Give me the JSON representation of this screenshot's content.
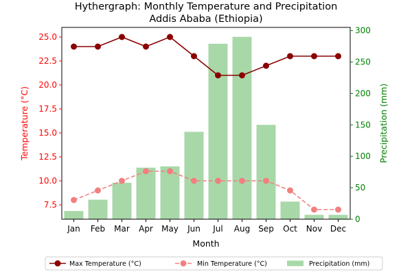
{
  "chart_data": {
    "type": "bar+line",
    "title": "Hythergraph: Monthly Temperature and Precipitation",
    "subtitle": "Addis Ababa (Ethiopia)",
    "xlabel": "Month",
    "ylabel_left": "Temperature (°C)",
    "ylabel_right": "Precipitation (mm)",
    "categories": [
      "Jan",
      "Feb",
      "Mar",
      "Apr",
      "May",
      "Jun",
      "Jul",
      "Aug",
      "Sep",
      "Oct",
      "Nov",
      "Dec"
    ],
    "ylim_left": [
      6.0,
      26.0
    ],
    "yticks_left": [
      "7.5",
      "10.0",
      "12.5",
      "15.0",
      "17.5",
      "20.0",
      "22.5",
      "25.0"
    ],
    "ylim_right": [
      0,
      305
    ],
    "yticks_right": [
      "0",
      "50",
      "100",
      "150",
      "200",
      "250",
      "300"
    ],
    "series": [
      {
        "name": "Max Temperature (°C)",
        "kind": "line",
        "axis": "left",
        "color": "#8b0000",
        "values": [
          24,
          24,
          25,
          24,
          25,
          23,
          21,
          21,
          22,
          23,
          23,
          23
        ]
      },
      {
        "name": "Min Temperature (°C)",
        "kind": "line",
        "axis": "left",
        "color": "#f08080",
        "values": [
          8,
          9,
          10,
          11,
          11,
          10,
          10,
          10,
          10,
          9,
          7,
          7
        ]
      },
      {
        "name": "Precipitation (mm)",
        "kind": "bar",
        "axis": "right",
        "color": "#a8d8a8",
        "values": [
          13,
          31,
          58,
          82,
          84,
          139,
          279,
          290,
          150,
          28,
          7,
          7
        ]
      }
    ],
    "left_axis_color": "#ff0000",
    "right_axis_color": "#008000",
    "grid": false,
    "legend_position": "bottom"
  }
}
